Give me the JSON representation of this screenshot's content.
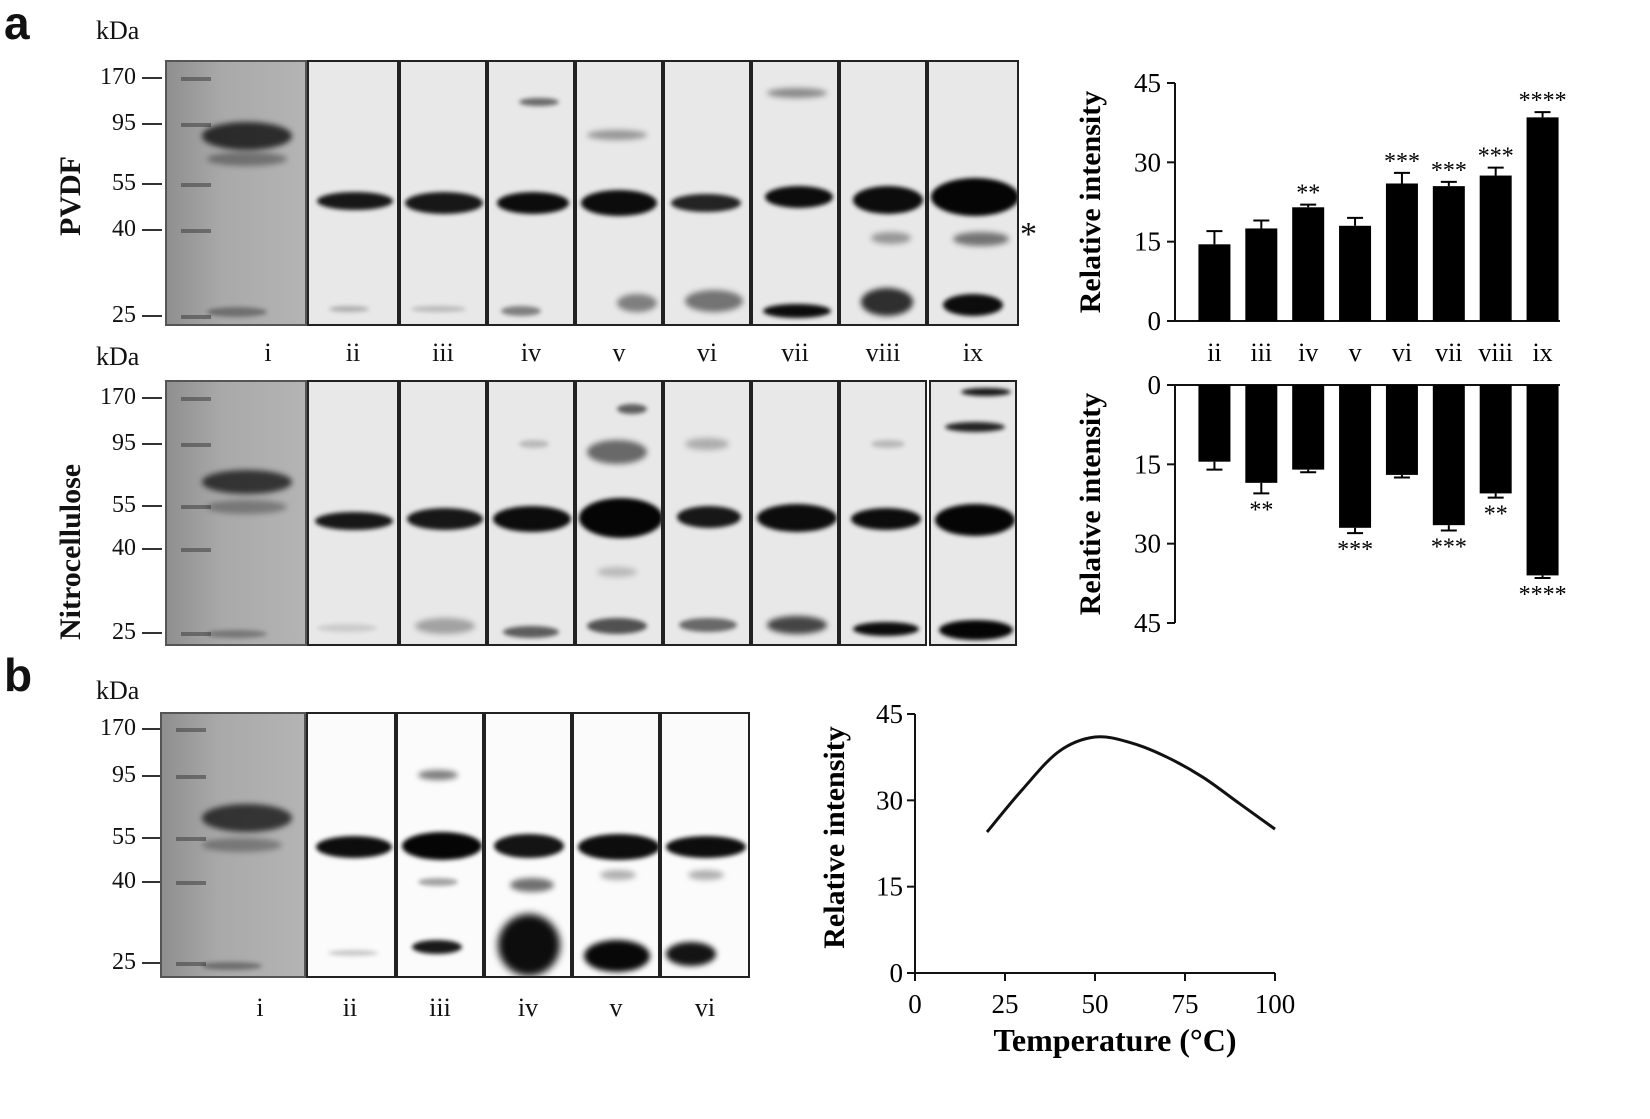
{
  "panel_a": {
    "letter": "a",
    "kda_label": "kDa",
    "row1_label": "PVDF",
    "row2_label": "Nitrocellulose",
    "mw_markers": [
      "170",
      "95",
      "55",
      "40",
      "25"
    ],
    "lanes": [
      "i",
      "ii",
      "iii",
      "iv",
      "v",
      "vi",
      "vii",
      "viii",
      "ix"
    ],
    "asterisk": "*"
  },
  "panel_b": {
    "letter": "b",
    "kda_label": "kDa",
    "mw_markers": [
      "170",
      "95",
      "55",
      "40",
      "25"
    ],
    "lanes": [
      "i",
      "ii",
      "iii",
      "iv",
      "v",
      "vi"
    ]
  },
  "chart_data": [
    {
      "type": "bar",
      "ylabel": "Relative intensity",
      "categories": [
        "ii",
        "iii",
        "iv",
        "v",
        "vi",
        "vii",
        "viii",
        "ix"
      ],
      "values": [
        14.5,
        17.5,
        21.5,
        18,
        26,
        25.5,
        27.5,
        38.5
      ],
      "errors": [
        2.5,
        1.5,
        0.5,
        1.5,
        2,
        0.8,
        1.5,
        1
      ],
      "significance": [
        "",
        "",
        "**",
        "",
        "***",
        "***",
        "***",
        "****"
      ],
      "ylim": [
        0,
        45
      ],
      "yticks": [
        "0",
        "15",
        "30",
        "45"
      ]
    },
    {
      "type": "bar",
      "orientation": "inverted",
      "ylabel": "Relative intensity",
      "categories": [
        "ii",
        "iii",
        "iv",
        "v",
        "vi",
        "vii",
        "viii",
        "ix"
      ],
      "values": [
        14.5,
        18.5,
        16,
        27,
        17,
        26.5,
        20.5,
        36
      ],
      "errors": [
        1.5,
        2,
        0.5,
        1,
        0.5,
        1,
        0.8,
        0.5
      ],
      "significance": [
        "",
        "**",
        "",
        "***",
        "",
        "***",
        "**",
        "****"
      ],
      "ylim": [
        0,
        45
      ],
      "yticks": [
        "0",
        "15",
        "30",
        "45"
      ]
    },
    {
      "type": "line",
      "xlabel": "Temperature (°C)",
      "ylabel": "Relative intensity",
      "x": [
        20,
        30,
        40,
        50,
        60,
        70,
        80,
        90,
        100
      ],
      "y": [
        24.5,
        32,
        38.5,
        41,
        40,
        37.5,
        34,
        29.5,
        25
      ],
      "xlim": [
        0,
        100
      ],
      "ylim": [
        0,
        45
      ],
      "xticks": [
        "0",
        "25",
        "50",
        "75",
        "100"
      ],
      "yticks": [
        "0",
        "15",
        "30",
        "45"
      ]
    }
  ]
}
